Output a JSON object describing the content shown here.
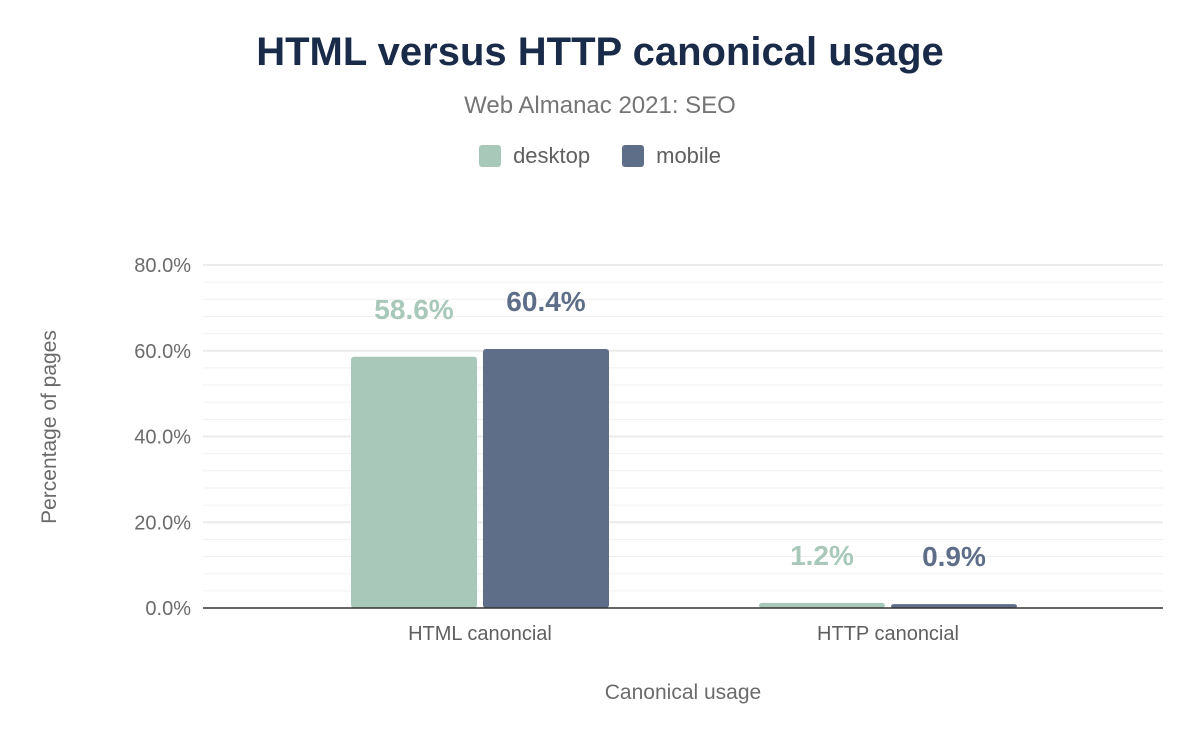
{
  "chart_data": {
    "type": "bar",
    "title": "HTML versus HTTP canonical usage",
    "subtitle": "Web Almanac 2021: SEO",
    "xlabel": "Canonical usage",
    "ylabel": "Percentage of pages",
    "categories": [
      "HTML canoncial",
      "HTTP canoncial"
    ],
    "series": [
      {
        "name": "desktop",
        "values": [
          58.6,
          1.2
        ],
        "labels": [
          "58.6%",
          "1.2%"
        ],
        "color": "#a8c8b9"
      },
      {
        "name": "mobile",
        "values": [
          60.4,
          0.9
        ],
        "labels": [
          "60.4%",
          "0.9%"
        ],
        "color": "#5f6e88"
      }
    ],
    "ylim": [
      0,
      80
    ],
    "yticks": [
      0,
      20,
      40,
      60,
      80
    ],
    "ytick_labels": [
      "0.0%",
      "20.0%",
      "40.0%",
      "60.0%",
      "80.0%"
    ],
    "minor_grid_step": 4,
    "grid": true,
    "legend_position": "top"
  }
}
